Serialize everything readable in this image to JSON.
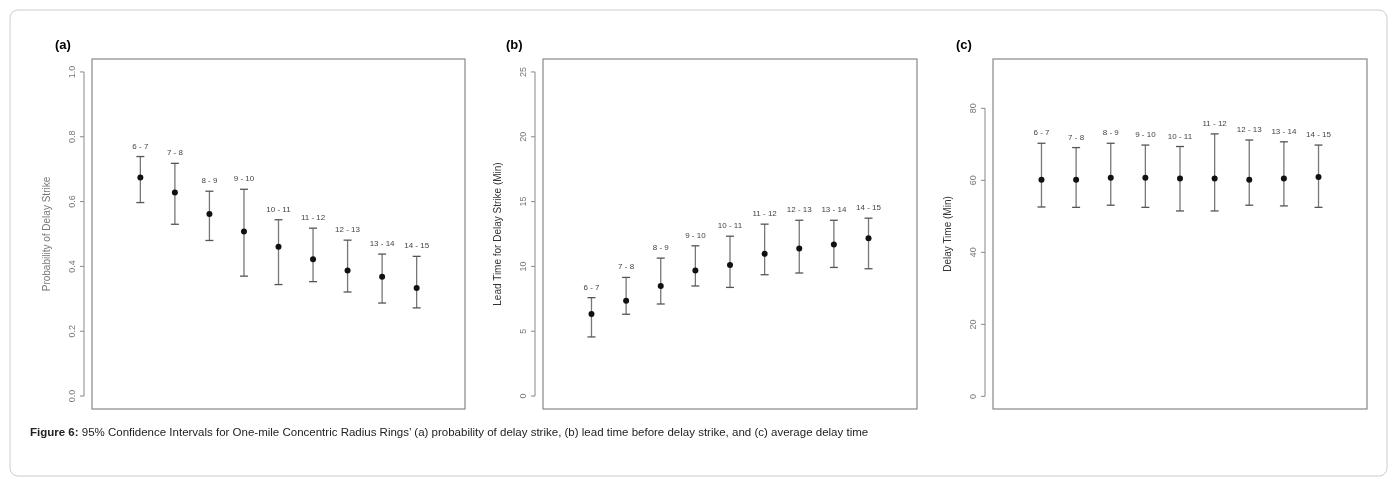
{
  "chart_data": [
    {
      "type": "scatter",
      "title": "(a)",
      "ylabel": "Probability of Delay Strike",
      "categories": [
        "6 - 7",
        "7 - 8",
        "8 - 9",
        "9 - 10",
        "10 - 11",
        "11 - 12",
        "12 - 13",
        "13 - 14",
        "14 - 15"
      ],
      "values": [
        0.674,
        0.628,
        0.562,
        0.508,
        0.461,
        0.422,
        0.387,
        0.368,
        0.333
      ],
      "errors": [
        [
          0.597,
          0.739
        ],
        [
          0.53,
          0.718
        ],
        [
          0.48,
          0.632
        ],
        [
          0.37,
          0.638
        ],
        [
          0.344,
          0.544
        ],
        [
          0.353,
          0.518
        ],
        [
          0.321,
          0.481
        ],
        [
          0.287,
          0.438
        ],
        [
          0.272,
          0.431
        ]
      ],
      "color": "#111111",
      "marker": "circle",
      "ylim": [
        -0.04,
        1.04
      ],
      "yticks": [
        {
          "value": 0,
          "label": "0.0"
        },
        {
          "value": 0.2,
          "label": "0.2"
        },
        {
          "value": 0.4,
          "label": "0.4"
        },
        {
          "value": 0.6,
          "label": "0.6"
        },
        {
          "value": 0.8,
          "label": "0.8"
        },
        {
          "value": 1,
          "label": "1.0"
        }
      ],
      "annotations": [
        "Figure 6: 95% Confidence Intervals for One-mile Concentric Radius Rings’ (a) probability of delay strike, (b) lead time before delay strike, and (c) average delay time"
      ]
    },
    {
      "type": "scatter",
      "title": "(b)",
      "ylabel": "Lead Time for Delay Strike (Min)",
      "categories": [
        "6 - 7",
        "7 - 8",
        "8 - 9",
        "9 - 10",
        "10 - 11",
        "11 - 12",
        "12 - 13",
        "13 - 14",
        "14 - 15"
      ],
      "values": [
        6.33,
        7.36,
        8.49,
        9.69,
        10.1,
        10.97,
        11.38,
        11.69,
        12.18
      ],
      "errors": [
        [
          4.56,
          7.59
        ],
        [
          6.31,
          9.15
        ],
        [
          7.1,
          10.64
        ],
        [
          8.49,
          11.59
        ],
        [
          8.38,
          12.33
        ],
        [
          9.36,
          13.26
        ],
        [
          9.49,
          13.56
        ],
        [
          9.92,
          13.56
        ],
        [
          9.82,
          13.72
        ]
      ],
      "color": "#111111",
      "marker": "circle",
      "ylim": [
        -1,
        26
      ],
      "yticks": [
        0,
        5,
        10,
        15,
        20,
        25
      ]
    },
    {
      "type": "scatter",
      "title": "(c)",
      "ylabel": "Delay Time (Min)",
      "categories": [
        "6 - 7",
        "7 - 8",
        "8 - 9",
        "9 - 10",
        "10 - 11",
        "11 - 12",
        "12 - 13",
        "13 - 14",
        "14 - 15"
      ],
      "values": [
        60.2,
        60.2,
        60.7,
        60.7,
        60.5,
        60.5,
        60.2,
        60.5,
        60.9
      ],
      "errors": [
        [
          52.6,
          70.3
        ],
        [
          52.5,
          69.1
        ],
        [
          53.1,
          70.3
        ],
        [
          52.5,
          69.8
        ],
        [
          51.5,
          69.4
        ],
        [
          51.5,
          72.9
        ],
        [
          53.1,
          71.2
        ],
        [
          52.9,
          70.7
        ],
        [
          52.5,
          69.8
        ]
      ],
      "color": "#111111",
      "marker": "circle",
      "ylim": [
        -3.5,
        93.7
      ],
      "yticks": [
        0,
        20,
        40,
        60,
        80
      ]
    }
  ]
}
